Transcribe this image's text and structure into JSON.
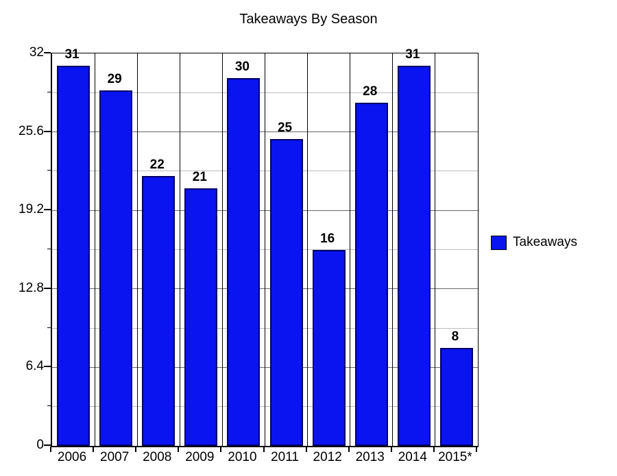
{
  "chart_data": {
    "type": "bar",
    "title": "Takeaways By Season",
    "categories": [
      "2006",
      "2007",
      "2008",
      "2009",
      "2010",
      "2011",
      "2012",
      "2013",
      "2014",
      "2015*"
    ],
    "series": [
      {
        "name": "Takeaways",
        "values": [
          31,
          29,
          22,
          21,
          30,
          25,
          16,
          28,
          31,
          8
        ]
      }
    ],
    "value_labels": [
      "31",
      "29",
      "22",
      "21",
      "30",
      "25",
      "16",
      "28",
      "31",
      "8"
    ],
    "legend_label": "Takeaways",
    "legend_position": "right",
    "xlabel": "",
    "ylabel": "",
    "ylim": [
      0,
      32
    ],
    "yticks_major": [
      0,
      6.4,
      12.8,
      19.2,
      25.6,
      32
    ],
    "ytick_labels": [
      "0",
      "6.4",
      "12.8",
      "19.2",
      "25.6",
      "32"
    ],
    "yticks_minor": [
      3.2,
      9.6,
      16,
      22.4,
      28.8
    ],
    "grid": "horizontal major + minor gridlines, vertical category separator lines, full plot border",
    "colors": {
      "bar_fill": "#0a14f0",
      "bar_border": "#000066",
      "major_grid": "#666666",
      "minor_grid": "#bcbcbc",
      "axis": "#000000",
      "text": "#000000",
      "background": "#ffffff"
    }
  }
}
